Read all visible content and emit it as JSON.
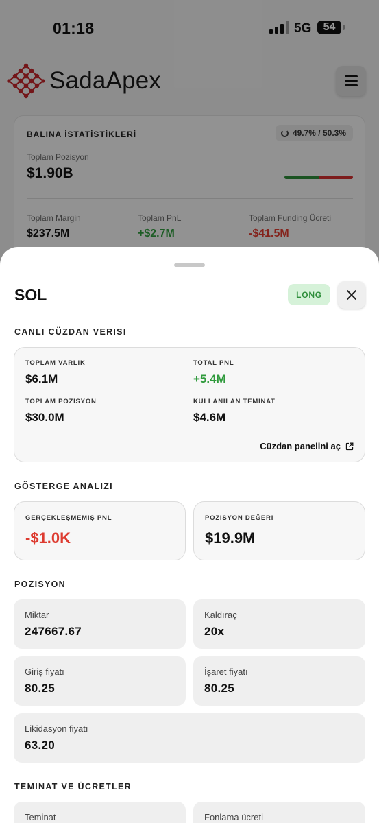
{
  "status_bar": {
    "time": "01:18",
    "network": "5G",
    "battery": "54"
  },
  "header": {
    "brand": "SadaApex"
  },
  "whale_stats": {
    "title": "BALINA İSTATİSTİKLERİ",
    "ratio": "49.7% / 50.3%",
    "long_ratio": 0.497,
    "total_position_label": "Toplam Pozisyon",
    "total_position_value": "$1.90B",
    "total_margin_label": "Toplam Margin",
    "total_margin_value": "$237.5M",
    "total_pnl_label": "Toplam PnL",
    "total_pnl_value": "+$2.7M",
    "funding_label": "Toplam Funding Ücreti",
    "funding_value": "-$41.5M"
  },
  "sheet": {
    "title": "SOL",
    "side_badge": "LONG",
    "wallet_section": {
      "title": "CANLI CÜZDAN VERISI",
      "items": [
        {
          "label": "TOPLAM VARLIK",
          "value": "$6.1M"
        },
        {
          "label": "TOTAL PNL",
          "value": "+5.4M"
        },
        {
          "label": "TOPLAM POZISYON",
          "value": "$30.0M"
        },
        {
          "label": "KULLANILAN TEMINAT",
          "value": "$4.6M"
        }
      ],
      "link_label": "Cüzdan panelini aç"
    },
    "indicator_section": {
      "title": "GÖSTERGE ANALIZI",
      "unrealized_label": "GERÇEKLEŞMEMIŞ PNL",
      "unrealized_value": "-$1.0K",
      "position_value_label": "POZISYON DEĞERI",
      "position_value": "$19.9M"
    },
    "position_section": {
      "title": "POZISYON",
      "amount_label": "Miktar",
      "amount_value": "247667.67",
      "leverage_label": "Kaldıraç",
      "leverage_value": "20x",
      "entry_label": "Giriş fiyatı",
      "entry_value": "80.25",
      "mark_label": "İşaret fiyatı",
      "mark_value": "80.25",
      "liq_label": "Likidasyon fiyatı",
      "liq_value": "63.20"
    },
    "fees_section": {
      "title": "TEMINAT VE ÜCRETLER",
      "collateral_label": "Teminat",
      "funding_label": "Fonlama ücreti"
    }
  },
  "colors": {
    "long_green": "#2f9a3c",
    "short_red": "#dd3b30",
    "brand_red": "#c0262b"
  }
}
